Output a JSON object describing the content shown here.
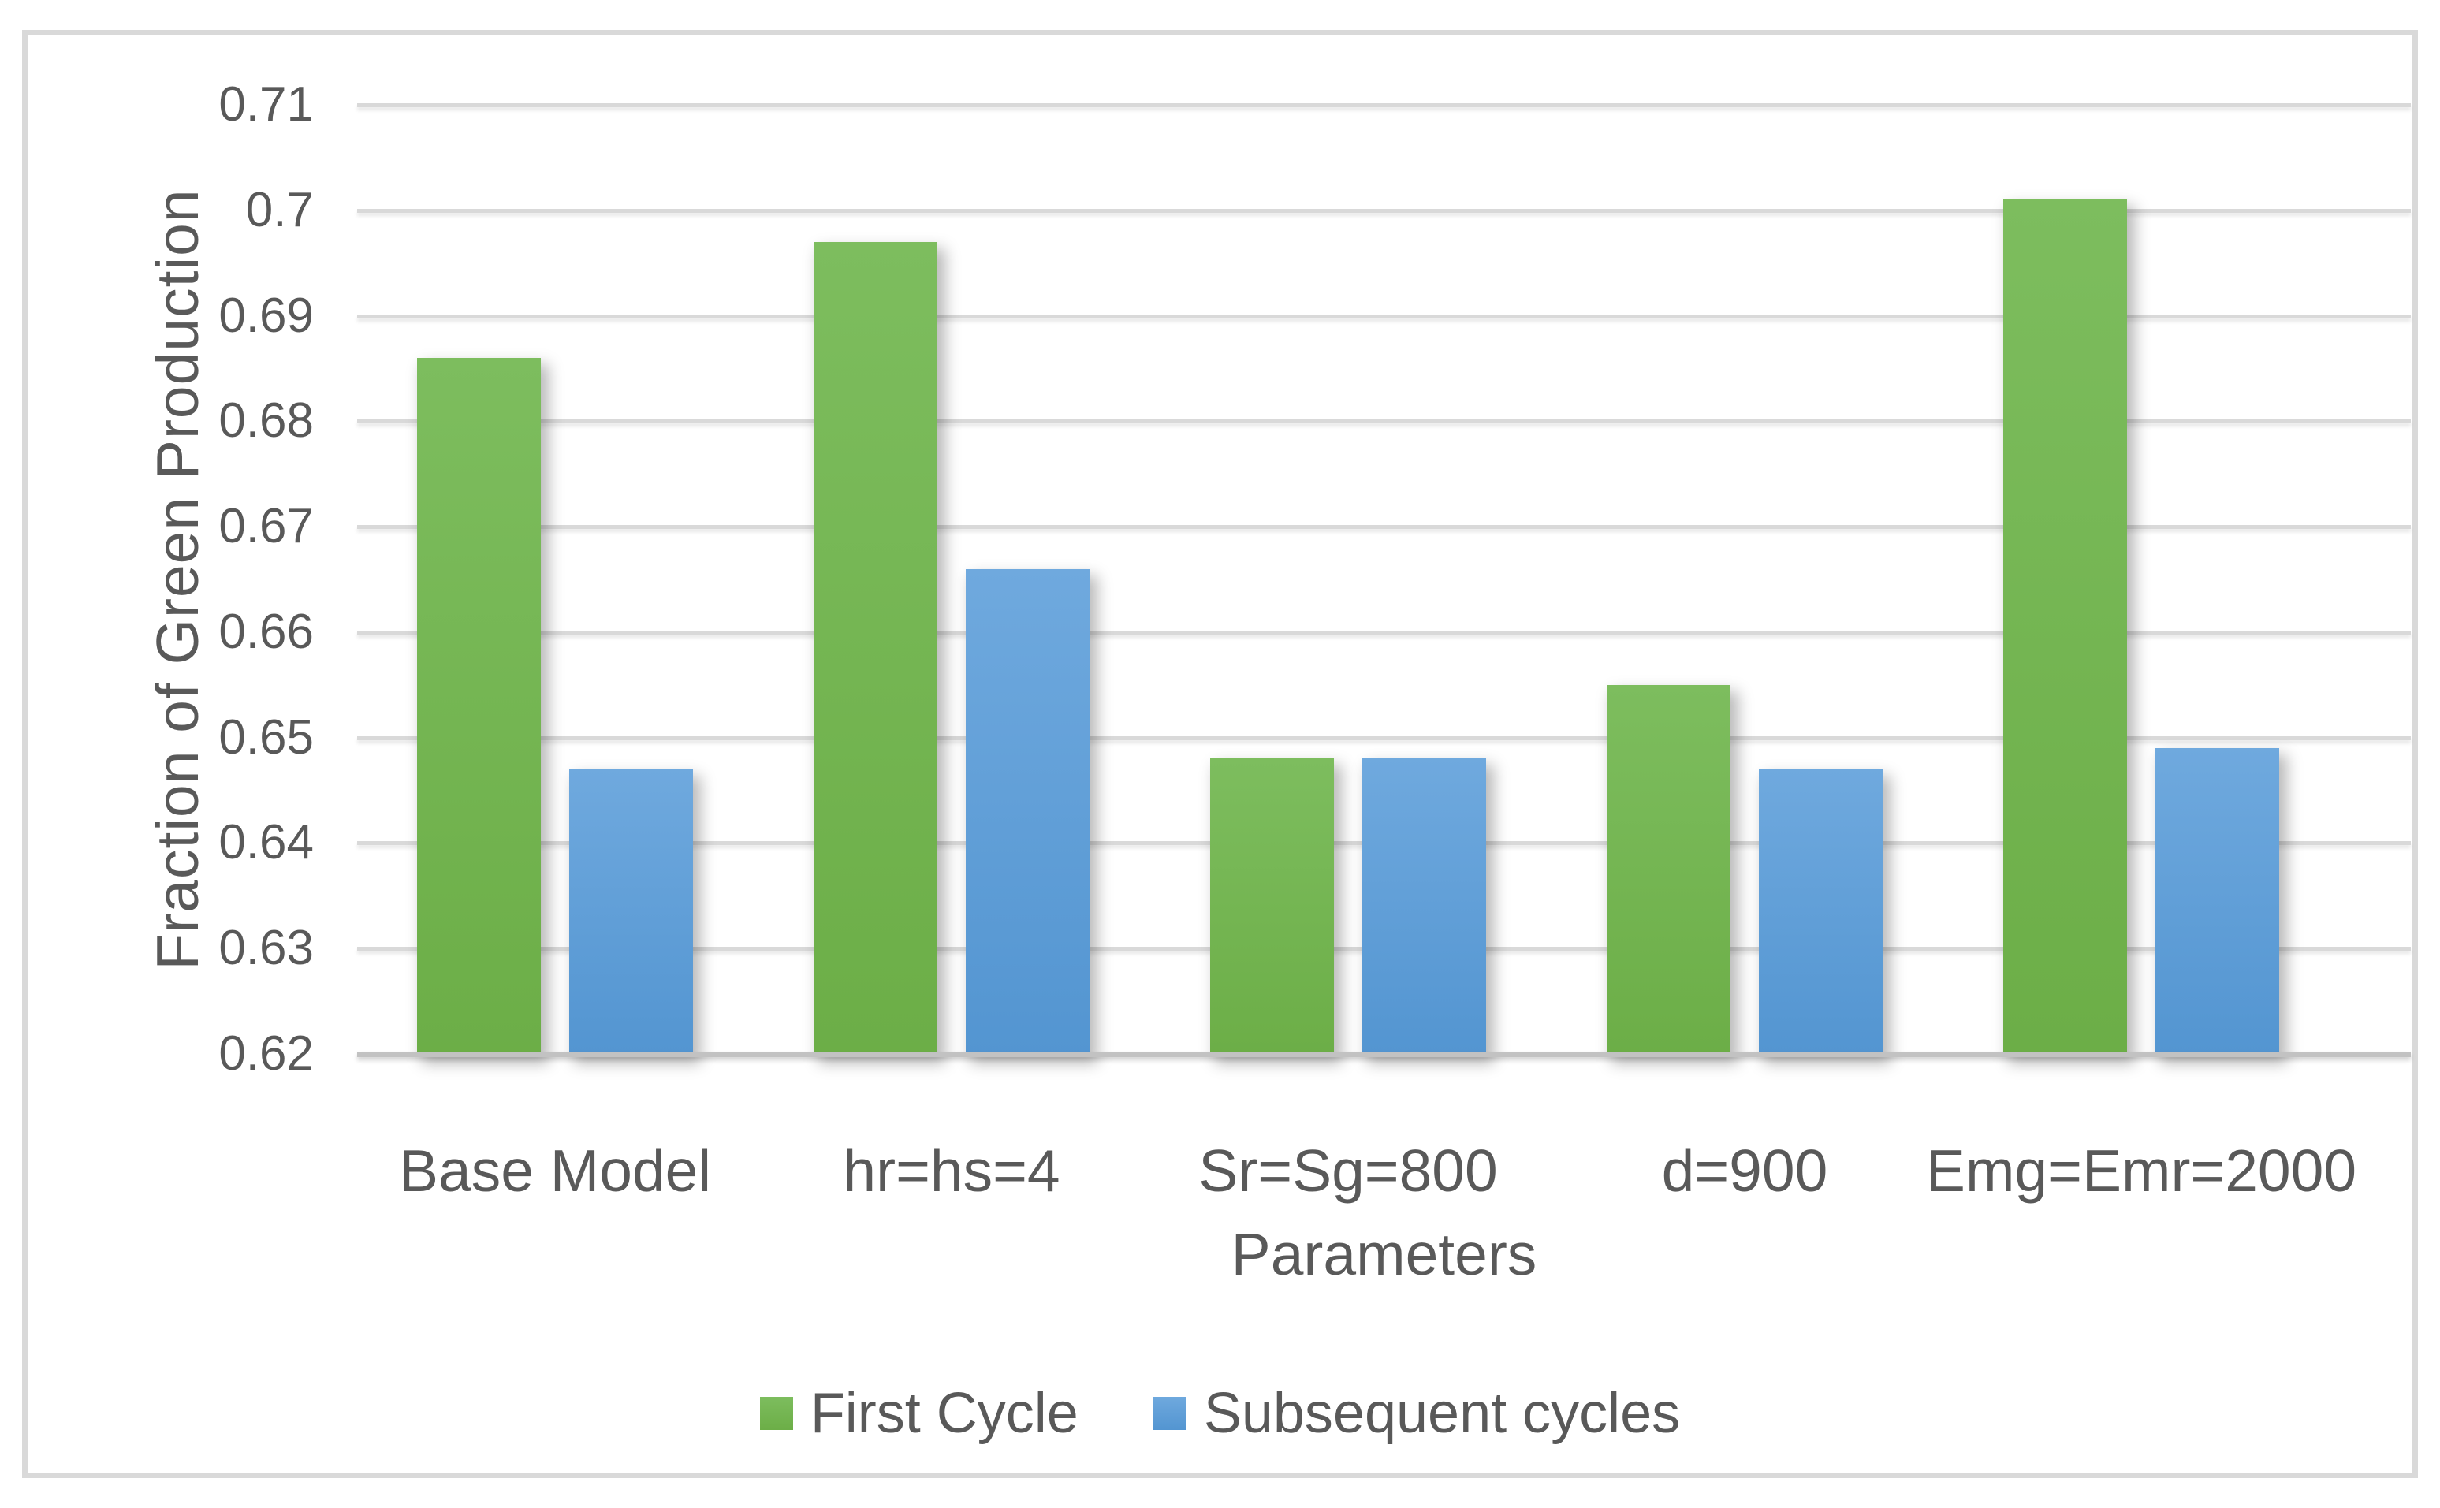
{
  "chart_data": {
    "type": "bar",
    "title": "",
    "categories": [
      "Base Model",
      "hr=hs=4",
      "Sr=Sg=800",
      "d=900",
      "Emg=Emr=2000"
    ],
    "series": [
      {
        "name": "First Cycle",
        "color_top": "#7DBD5E",
        "color_bottom": "#6CAE47",
        "values": [
          0.686,
          0.697,
          0.648,
          0.655,
          0.701
        ]
      },
      {
        "name": "Subsequent cycles",
        "color_top": "#6FA9DE",
        "color_bottom": "#5395D1",
        "values": [
          0.647,
          0.666,
          0.648,
          0.647,
          0.649
        ]
      }
    ],
    "xlabel": "Parameters",
    "ylabel": "Fraction of Green Production",
    "ylim": [
      0.62,
      0.71
    ],
    "yticks": [
      0.62,
      0.63,
      0.64,
      0.65,
      0.66,
      0.67,
      0.68,
      0.69,
      0.7,
      0.71
    ],
    "ytick_labels": [
      "0.62",
      "0.63",
      "0.64",
      "0.65",
      "0.66",
      "0.67",
      "0.68",
      "0.69",
      "0.7",
      "0.71"
    ],
    "grid": true,
    "legend_position": "bottom-center"
  },
  "colors": {
    "gridline": "#D9D9D9",
    "axis_line": "#C2C2C2",
    "chart_border": "#D9D9D9",
    "text": "#595959",
    "background": "#FFFFFF"
  }
}
